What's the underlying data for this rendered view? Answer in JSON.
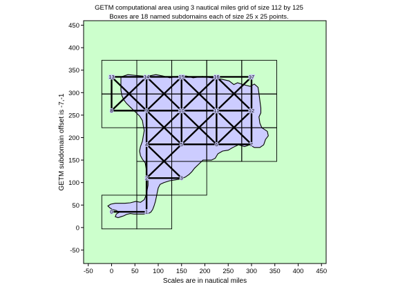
{
  "chart_data": {
    "type": "diagram",
    "title": "GETM computational area using 3 nautical miles grid of size  112 by 125",
    "subtitle": "Boxes are 18 named subdomains each of size 25 x 25 points.",
    "xlabel": "Scales are in nautical miles",
    "ylabel": "GETM subdomain offset is -7,-1",
    "xlim": [
      -60,
      460
    ],
    "ylim": [
      -80,
      460
    ],
    "xticks": [
      -50,
      0,
      50,
      100,
      150,
      200,
      250,
      300,
      350,
      400,
      450
    ],
    "yticks": [
      -50,
      0,
      50,
      100,
      150,
      200,
      250,
      300,
      350,
      400,
      450
    ],
    "background_color": "#ccffcc",
    "water_color": "#ccccff",
    "grid": false,
    "subdomains": [
      {
        "name": "0",
        "x0": -21,
        "y0": -3
      },
      {
        "name": "1",
        "x0": 54,
        "y0": -3
      },
      {
        "name": "2",
        "x0": 54,
        "y0": 72
      },
      {
        "name": "3",
        "x0": 129,
        "y0": 72
      },
      {
        "name": "4",
        "x0": 54,
        "y0": 147
      },
      {
        "name": "5",
        "x0": 129,
        "y0": 147
      },
      {
        "name": "6",
        "x0": 204,
        "y0": 147
      },
      {
        "name": "7",
        "x0": 279,
        "y0": 147
      },
      {
        "name": "8",
        "x0": -21,
        "y0": 222
      },
      {
        "name": "9",
        "x0": 54,
        "y0": 222
      },
      {
        "name": "10",
        "x0": 129,
        "y0": 222
      },
      {
        "name": "11",
        "x0": 204,
        "y0": 222
      },
      {
        "name": "12",
        "x0": 279,
        "y0": 222
      },
      {
        "name": "13",
        "x0": -21,
        "y0": 297
      },
      {
        "name": "14",
        "x0": 54,
        "y0": 297
      },
      {
        "name": "15",
        "x0": 129,
        "y0": 297
      },
      {
        "name": "16",
        "x0": 204,
        "y0": 297
      },
      {
        "name": "17",
        "x0": 279,
        "y0": 297
      }
    ],
    "subdomain_size": 75,
    "inner_box_edges": [
      [
        -21,
        297,
        354,
        297
      ],
      [
        54,
        222,
        354,
        222
      ],
      [
        54,
        147,
        279,
        147
      ],
      [
        54,
        72,
        129,
        72
      ],
      [
        54,
        -3,
        54,
        372
      ],
      [
        129,
        72,
        129,
        372
      ],
      [
        204,
        147,
        204,
        372
      ],
      [
        279,
        147,
        279,
        372
      ]
    ],
    "labels": [
      {
        "text": "0",
        "x": 0,
        "y": 35
      },
      {
        "text": "1",
        "x": 75,
        "y": 35
      },
      {
        "text": "2",
        "x": 75,
        "y": 110
      },
      {
        "text": "3",
        "x": 150,
        "y": 110
      },
      {
        "text": "4",
        "x": 75,
        "y": 185
      },
      {
        "text": "5",
        "x": 150,
        "y": 185
      },
      {
        "text": "6",
        "x": 225,
        "y": 185
      },
      {
        "text": "7",
        "x": 300,
        "y": 185
      },
      {
        "text": "8",
        "x": 0,
        "y": 260
      },
      {
        "text": "9",
        "x": 75,
        "y": 260
      },
      {
        "text": "10",
        "x": 150,
        "y": 260
      },
      {
        "text": "11",
        "x": 225,
        "y": 260
      },
      {
        "text": "12",
        "x": 300,
        "y": 260
      },
      {
        "text": "13",
        "x": 0,
        "y": 335
      },
      {
        "text": "14",
        "x": 75,
        "y": 335
      },
      {
        "text": "15",
        "x": 150,
        "y": 335
      },
      {
        "text": "16",
        "x": 225,
        "y": 335
      },
      {
        "text": "17",
        "x": 300,
        "y": 335
      }
    ],
    "connection_lines": [
      [
        0,
        35,
        75,
        35
      ],
      [
        75,
        35,
        75,
        110
      ],
      [
        75,
        110,
        150,
        110
      ],
      [
        75,
        110,
        75,
        185
      ],
      [
        75,
        185,
        150,
        185
      ],
      [
        150,
        185,
        225,
        185
      ],
      [
        225,
        185,
        300,
        185
      ],
      [
        75,
        185,
        75,
        260
      ],
      [
        150,
        185,
        150,
        260
      ],
      [
        225,
        185,
        225,
        260
      ],
      [
        300,
        185,
        300,
        260
      ],
      [
        0,
        260,
        75,
        260
      ],
      [
        75,
        260,
        150,
        260
      ],
      [
        150,
        260,
        225,
        260
      ],
      [
        225,
        260,
        300,
        260
      ],
      [
        0,
        260,
        0,
        335
      ],
      [
        75,
        260,
        75,
        335
      ],
      [
        150,
        260,
        150,
        335
      ],
      [
        225,
        260,
        225,
        335
      ],
      [
        300,
        260,
        300,
        335
      ],
      [
        0,
        335,
        75,
        335
      ],
      [
        75,
        335,
        150,
        335
      ],
      [
        150,
        335,
        225,
        335
      ],
      [
        225,
        335,
        300,
        335
      ]
    ],
    "cross_cells": [
      [
        75,
        110,
        150,
        185
      ],
      [
        75,
        185,
        150,
        260
      ],
      [
        150,
        185,
        225,
        260
      ],
      [
        225,
        185,
        300,
        260
      ],
      [
        0,
        260,
        75,
        335
      ],
      [
        75,
        260,
        150,
        335
      ],
      [
        150,
        260,
        225,
        335
      ],
      [
        225,
        260,
        300,
        335
      ]
    ],
    "land_outline": [
      [
        20,
        335
      ],
      [
        35,
        340
      ],
      [
        55,
        338
      ],
      [
        75,
        336
      ],
      [
        95,
        340
      ],
      [
        110,
        337
      ],
      [
        125,
        333
      ],
      [
        140,
        336
      ],
      [
        160,
        337
      ],
      [
        175,
        333
      ],
      [
        195,
        336
      ],
      [
        215,
        333
      ],
      [
        235,
        330
      ],
      [
        252,
        326
      ],
      [
        262,
        318
      ],
      [
        270,
        322
      ],
      [
        282,
        318
      ],
      [
        297,
        314
      ],
      [
        306,
        319
      ],
      [
        314,
        312
      ],
      [
        316,
        298
      ],
      [
        318,
        282
      ],
      [
        320,
        266
      ],
      [
        320,
        255
      ],
      [
        316,
        246
      ],
      [
        318,
        232
      ],
      [
        322,
        222
      ],
      [
        334,
        214
      ],
      [
        336,
        204
      ],
      [
        330,
        196
      ],
      [
        326,
        184
      ],
      [
        318,
        178
      ],
      [
        306,
        178
      ],
      [
        296,
        184
      ],
      [
        285,
        180
      ],
      [
        272,
        184
      ],
      [
        260,
        178
      ],
      [
        250,
        172
      ],
      [
        238,
        170
      ],
      [
        228,
        164
      ],
      [
        222,
        154
      ],
      [
        214,
        150
      ],
      [
        196,
        150
      ],
      [
        186,
        140
      ],
      [
        178,
        132
      ],
      [
        172,
        124
      ],
      [
        166,
        118
      ],
      [
        158,
        112
      ],
      [
        148,
        108
      ],
      [
        136,
        106
      ],
      [
        124,
        104
      ],
      [
        112,
        100
      ],
      [
        104,
        96
      ],
      [
        100,
        88
      ],
      [
        98,
        78
      ],
      [
        96,
        68
      ],
      [
        94,
        58
      ],
      [
        91,
        48
      ],
      [
        88,
        40
      ],
      [
        84,
        34
      ],
      [
        78,
        31
      ],
      [
        68,
        30
      ],
      [
        58,
        30
      ],
      [
        48,
        30
      ],
      [
        40,
        31
      ],
      [
        32,
        29
      ],
      [
        26,
        26
      ],
      [
        20,
        24
      ],
      [
        14,
        22
      ],
      [
        8,
        24
      ],
      [
        10,
        30
      ],
      [
        16,
        34
      ],
      [
        10,
        38
      ],
      [
        2,
        40
      ],
      [
        -4,
        44
      ],
      [
        -8,
        48
      ],
      [
        -2,
        52
      ],
      [
        8,
        54
      ],
      [
        18,
        54
      ],
      [
        28,
        54
      ],
      [
        40,
        55
      ],
      [
        52,
        58
      ],
      [
        62,
        56
      ],
      [
        70,
        62
      ],
      [
        74,
        72
      ],
      [
        76,
        82
      ],
      [
        78,
        94
      ],
      [
        78,
        106
      ],
      [
        76,
        118
      ],
      [
        74,
        132
      ],
      [
        72,
        144
      ],
      [
        66,
        152
      ],
      [
        62,
        160
      ],
      [
        60,
        170
      ],
      [
        62,
        180
      ],
      [
        66,
        192
      ],
      [
        68,
        204
      ],
      [
        70,
        216
      ],
      [
        68,
        226
      ],
      [
        66,
        238
      ],
      [
        60,
        248
      ],
      [
        52,
        256
      ],
      [
        46,
        262
      ],
      [
        40,
        268
      ],
      [
        32,
        276
      ],
      [
        26,
        284
      ],
      [
        22,
        294
      ],
      [
        20,
        306
      ],
      [
        20,
        318
      ],
      [
        20,
        335
      ]
    ]
  }
}
